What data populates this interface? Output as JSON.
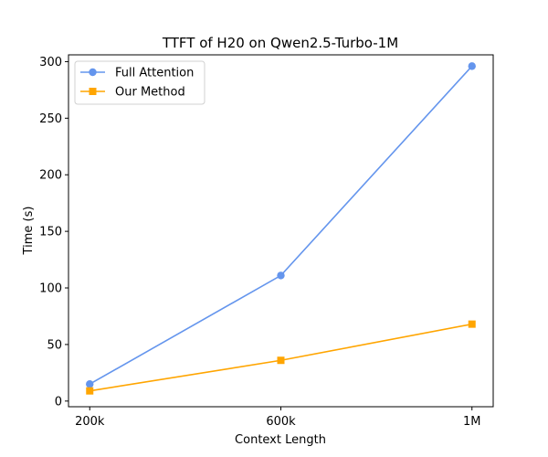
{
  "chart_data": {
    "type": "line",
    "title": "TTFT of H20 on Qwen2.5-Turbo-1M",
    "xlabel": "Context Length",
    "ylabel": "Time (s)",
    "categories": [
      "200k",
      "600k",
      "1M"
    ],
    "ylim": [
      -5,
      306
    ],
    "yticks": [
      0,
      50,
      100,
      150,
      200,
      250,
      300
    ],
    "grid": false,
    "legend_position": "top-left",
    "series": [
      {
        "name": "Full Attention",
        "values": [
          15,
          111,
          296
        ],
        "color": "#6495ED",
        "marker": "circle"
      },
      {
        "name": "Our Method",
        "values": [
          9,
          36,
          68
        ],
        "color": "#FFA500",
        "marker": "square"
      }
    ]
  }
}
